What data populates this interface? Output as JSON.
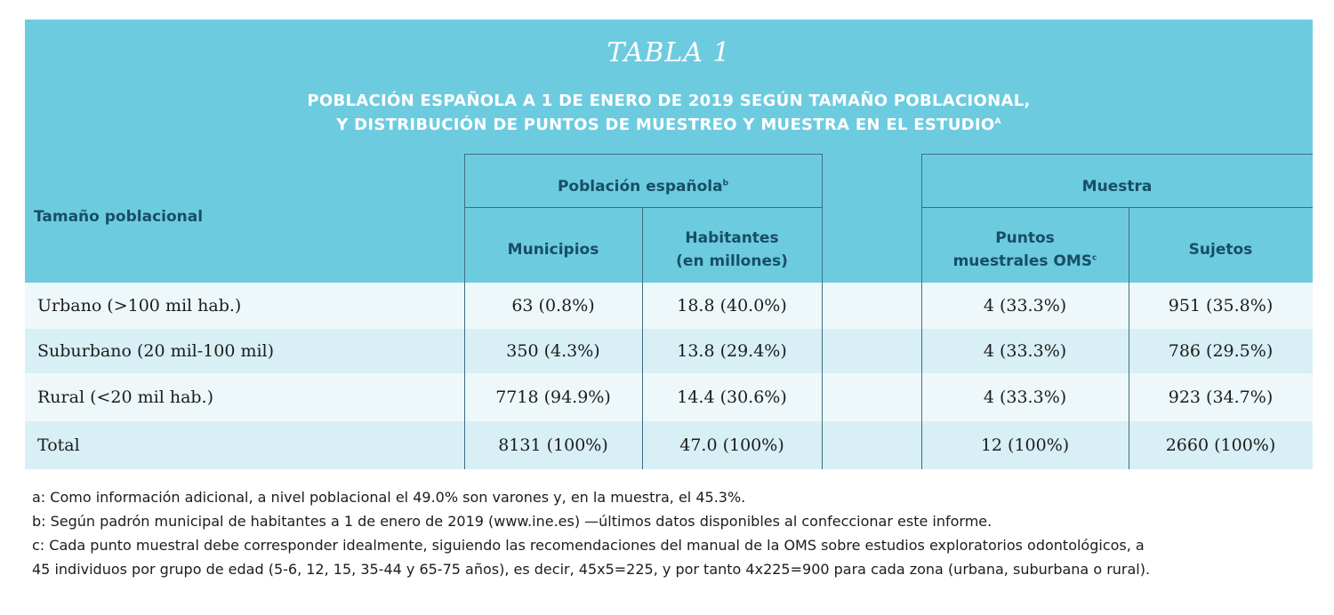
{
  "table": {
    "label": "TABLA 1",
    "heading_line1": "POBLACIÓN ESPAÑOLA A 1 DE ENERO DE 2019 SEGÚN TAMAÑO POBLACIONAL,",
    "heading_line2": "Y DISTRIBUCIÓN DE PUNTOS DE MUESTREO Y MUESTRA EN EL ESTUDIO",
    "heading_sup": "a",
    "row_header": "Tamaño poblacional",
    "group_poblacion": "Población española",
    "group_poblacion_sup": "b",
    "group_muestra": "Muestra",
    "col_municipios": "Municipios",
    "col_habitantes_l1": "Habitantes",
    "col_habitantes_l2": "(en millones)",
    "col_puntos_l1": "Puntos",
    "col_puntos_l2": "muestrales OMS",
    "col_puntos_sup": "c",
    "col_sujetos": "Sujetos",
    "rows": [
      {
        "label": "Urbano (>100 mil hab.)",
        "municipios": "63 (0.8%)",
        "habitantes": "18.8 (40.0%)",
        "puntos": "4 (33.3%)",
        "sujetos": "951 (35.8%)"
      },
      {
        "label": "Suburbano (20 mil-100 mil)",
        "municipios": "350 (4.3%)",
        "habitantes": "13.8 (29.4%)",
        "puntos": "4 (33.3%)",
        "sujetos": "786 (29.5%)"
      },
      {
        "label": "Rural (<20 mil hab.)",
        "municipios": "7718 (94.9%)",
        "habitantes": "14.4 (30.6%)",
        "puntos": "4 (33.3%)",
        "sujetos": "923 (34.7%)"
      },
      {
        "label": "Total",
        "municipios": "8131 (100%)",
        "habitantes": "47.0 (100%)",
        "puntos": "12 (100%)",
        "sujetos": "2660 (100%)"
      }
    ]
  },
  "footnotes": {
    "a": "a: Como información adicional, a nivel poblacional el 49.0% son varones y, en la muestra, el 45.3%.",
    "b": "b: Según padrón municipal de habitantes a 1 de enero de 2019 (www.ine.es) —últimos datos disponibles al confeccionar este informe.",
    "c1": "c: Cada punto muestral debe corresponder idealmente, siguiendo las recomendaciones del manual de la OMS sobre estudios exploratorios odontológicos, a",
    "c2": "45 individuos por grupo de edad (5-6, 12, 15, 35-44 y 65-75 años), es decir, 45x5=225, y por tanto 4x225=900 para cada zona (urbana, suburbana o rural)."
  },
  "colors": {
    "header_bg": "#6dcbe0",
    "header_text": "#174e66",
    "row_light": "#eef8fb",
    "row_mid": "#d8eff5"
  }
}
